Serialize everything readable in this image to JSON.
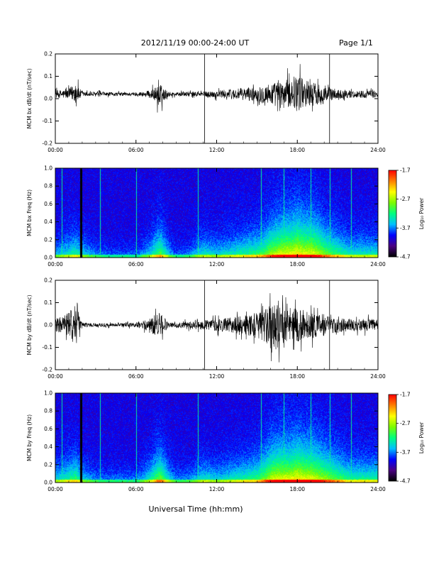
{
  "header": {
    "title": "2012/11/19  00:00-24:00 UT",
    "page": "Page 1/1"
  },
  "footer": {
    "xlabel": "Universal Time (hh:mm)"
  },
  "colorbar": {
    "label": "Log₁₀ Power",
    "ticks": [
      "-1.7",
      "-2.7",
      "-3.7",
      "-4.7"
    ],
    "range": [
      -4.7,
      -1.7
    ],
    "colormap": [
      "#000000",
      "#4b0082",
      "#0000ff",
      "#00bfff",
      "#00ff7f",
      "#7cfc00",
      "#ffff00",
      "#ff7f00",
      "#ff0000"
    ]
  },
  "chart_data": [
    {
      "type": "line",
      "title": "",
      "xlabel": "",
      "ylabel": "MCM bx dB/dt (nT/sec)",
      "x_ticks": [
        "00:00",
        "06:00",
        "12:00",
        "18:00",
        "24:00"
      ],
      "xlim_hours": [
        0,
        24
      ],
      "y_ticks": [
        "-0.2",
        "-0.1",
        "0.0",
        "0.1",
        "0.2"
      ],
      "ylim": [
        -0.2,
        0.2
      ],
      "vlines_hours": [
        11.1,
        20.4
      ],
      "series": [
        {
          "x_hours": [
            0,
            1,
            1.5,
            1.8,
            2,
            3,
            4,
            5,
            6,
            7,
            7.5,
            7.8,
            8,
            8.5,
            9,
            10,
            11,
            12,
            13,
            14,
            15,
            15.5,
            16,
            16.5,
            17,
            17.5,
            18,
            18.5,
            19,
            19.5,
            20,
            20.5,
            21,
            22,
            23,
            24
          ],
          "center": [
            0.02,
            0.02,
            0.03,
            0.02,
            0.02,
            0.02,
            0.02,
            0.02,
            0.02,
            0.02,
            0.02,
            0.0,
            0.02,
            0.02,
            0.02,
            0.02,
            0.02,
            0.02,
            0.02,
            0.02,
            0.02,
            0.02,
            0.02,
            0.02,
            0.02,
            0.03,
            0.03,
            0.03,
            0.02,
            0.02,
            0.02,
            0.02,
            0.02,
            0.02,
            0.02,
            0.02
          ],
          "amplitude": [
            0.03,
            0.04,
            0.09,
            0.05,
            0.02,
            0.02,
            0.015,
            0.015,
            0.015,
            0.03,
            0.06,
            0.13,
            0.05,
            0.02,
            0.015,
            0.02,
            0.02,
            0.03,
            0.04,
            0.05,
            0.06,
            0.08,
            0.09,
            0.1,
            0.1,
            0.12,
            0.14,
            0.12,
            0.1,
            0.09,
            0.08,
            0.05,
            0.04,
            0.03,
            0.03,
            0.03
          ]
        }
      ]
    },
    {
      "type": "heatmap",
      "title": "",
      "xlabel": "",
      "ylabel": "MCM bx Freq (Hz)",
      "x_ticks": [
        "00:00",
        "06:00",
        "12:00",
        "18:00",
        "24:00"
      ],
      "xlim_hours": [
        0,
        24
      ],
      "y_ticks": [
        "0.0",
        "0.2",
        "0.4",
        "0.6",
        "0.8",
        "1.0"
      ],
      "ylim_hz": [
        0,
        1
      ],
      "zlim": [
        -4.7,
        -1.7
      ],
      "activity_hours": [
        0,
        1,
        1.5,
        2,
        3,
        4,
        5,
        6,
        7,
        7.5,
        7.8,
        8.5,
        9,
        10,
        10.6,
        11,
        12,
        13,
        14,
        15,
        15.5,
        16,
        16.5,
        17,
        17.5,
        18,
        18.5,
        19,
        19.5,
        20,
        20.5,
        21,
        22,
        23,
        24
      ],
      "activity_level": [
        0.25,
        0.35,
        0.4,
        0.3,
        0.2,
        0.15,
        0.15,
        0.15,
        0.3,
        0.45,
        0.5,
        0.25,
        0.15,
        0.2,
        0.3,
        0.35,
        0.3,
        0.35,
        0.4,
        0.45,
        0.5,
        0.6,
        0.65,
        0.7,
        0.7,
        0.75,
        0.7,
        0.7,
        0.65,
        0.55,
        0.5,
        0.45,
        0.35,
        0.35,
        0.35
      ],
      "dark_stripe_hours": [
        1.9
      ],
      "bright_lines_hours": [
        0.5,
        3.3,
        6.0,
        10.6,
        15.3,
        17.0,
        19.0,
        20.4,
        22.0
      ]
    },
    {
      "type": "line",
      "title": "",
      "xlabel": "",
      "ylabel": "MCM by dB/dt (nT/sec)",
      "x_ticks": [
        "00:00",
        "06:00",
        "12:00",
        "18:00",
        "24:00"
      ],
      "xlim_hours": [
        0,
        24
      ],
      "y_ticks": [
        "-0.2",
        "-0.1",
        "0.0",
        "0.1",
        "0.2"
      ],
      "ylim": [
        -0.2,
        0.2
      ],
      "vlines_hours": [
        11.1,
        20.4
      ],
      "series": [
        {
          "x_hours": [
            0,
            1,
            1.5,
            1.8,
            2,
            3,
            4,
            5,
            6,
            7,
            7.5,
            7.8,
            8,
            8.5,
            9,
            10,
            11,
            12,
            13,
            14,
            15,
            15.5,
            16,
            16.5,
            17,
            17.5,
            18,
            18.5,
            19,
            19.5,
            20,
            20.5,
            21,
            22,
            23,
            24
          ],
          "center": [
            0.0,
            0.0,
            0.0,
            0.0,
            0.0,
            0.0,
            0.0,
            0.0,
            0.0,
            0.0,
            0.0,
            0.0,
            0.0,
            0.0,
            0.0,
            0.0,
            0.0,
            0.0,
            0.0,
            0.0,
            0.0,
            0.0,
            0.0,
            0.0,
            0.0,
            0.0,
            0.0,
            0.0,
            0.0,
            0.0,
            0.0,
            0.0,
            0.0,
            0.0,
            0.0,
            0.0
          ],
          "amplitude": [
            0.05,
            0.1,
            0.18,
            0.08,
            0.02,
            0.015,
            0.015,
            0.015,
            0.02,
            0.05,
            0.1,
            0.11,
            0.07,
            0.02,
            0.02,
            0.03,
            0.04,
            0.05,
            0.06,
            0.08,
            0.1,
            0.14,
            0.19,
            0.2,
            0.15,
            0.12,
            0.14,
            0.12,
            0.11,
            0.1,
            0.09,
            0.07,
            0.06,
            0.05,
            0.05,
            0.05
          ]
        }
      ]
    },
    {
      "type": "heatmap",
      "title": "",
      "xlabel": "",
      "ylabel": "MCM by Freq (Hz)",
      "x_ticks": [
        "00:00",
        "06:00",
        "12:00",
        "18:00",
        "24:00"
      ],
      "xlim_hours": [
        0,
        24
      ],
      "y_ticks": [
        "0.0",
        "0.2",
        "0.4",
        "0.6",
        "0.8",
        "1.0"
      ],
      "ylim_hz": [
        0,
        1
      ],
      "zlim": [
        -4.7,
        -1.7
      ],
      "activity_hours": [
        0,
        1,
        1.5,
        2,
        3,
        4,
        5,
        6,
        7,
        7.5,
        7.8,
        8.5,
        9,
        10,
        10.6,
        11,
        12,
        13,
        14,
        15,
        15.5,
        16,
        16.5,
        17,
        17.5,
        18,
        18.5,
        19,
        19.5,
        20,
        20.5,
        21,
        22,
        23,
        24
      ],
      "activity_level": [
        0.3,
        0.4,
        0.45,
        0.3,
        0.2,
        0.18,
        0.18,
        0.18,
        0.35,
        0.5,
        0.55,
        0.3,
        0.2,
        0.22,
        0.3,
        0.35,
        0.3,
        0.35,
        0.4,
        0.45,
        0.55,
        0.65,
        0.7,
        0.7,
        0.7,
        0.75,
        0.7,
        0.7,
        0.65,
        0.6,
        0.55,
        0.5,
        0.4,
        0.4,
        0.4
      ],
      "dark_stripe_hours": [
        1.9
      ],
      "bright_lines_hours": [
        0.5,
        3.3,
        6.0,
        10.6,
        15.3,
        17.0,
        19.0,
        20.4,
        22.0
      ]
    }
  ]
}
